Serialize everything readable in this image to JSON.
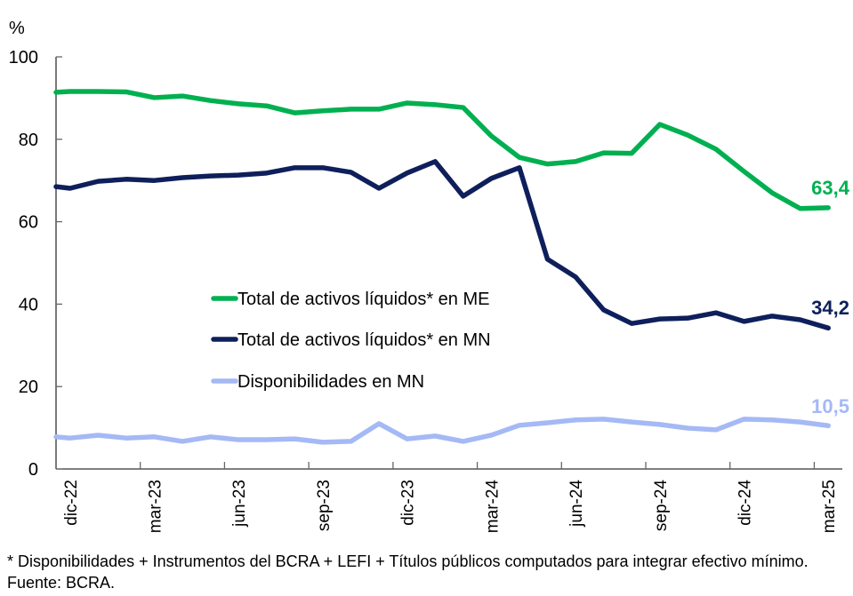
{
  "chart_data": {
    "type": "line",
    "title": "",
    "ylabel": "%",
    "xlabel": "",
    "ylim": [
      0,
      100
    ],
    "yticks": [
      0,
      20,
      40,
      60,
      80,
      100
    ],
    "grid": false,
    "legend_position": "center-left, inside plot",
    "categories": [
      "dic-22",
      "ene-23",
      "feb-23",
      "mar-23",
      "abr-23",
      "may-23",
      "jun-23",
      "jul-23",
      "ago-23",
      "sep-23",
      "oct-23",
      "nov-23",
      "dic-23",
      "ene-24",
      "feb-24",
      "mar-24",
      "abr-24",
      "may-24",
      "jun-24",
      "jul-24",
      "ago-24",
      "sep-24",
      "oct-24",
      "nov-24",
      "dic-24",
      "ene-25",
      "feb-25",
      "mar-25"
    ],
    "xtick_labels": [
      "dic-22",
      "mar-23",
      "jun-23",
      "sep-23",
      "dic-23",
      "mar-24",
      "jun-24",
      "sep-24",
      "dic-24",
      "mar-25"
    ],
    "xtick_label_every": 3,
    "series": [
      {
        "name": "Total de activos líquidos* en ME",
        "color": "#00B050",
        "axis_start_value": 91.4,
        "values": [
          91.6,
          91.6,
          91.5,
          90.1,
          90.5,
          89.4,
          88.6,
          88.1,
          86.4,
          86.9,
          87.3,
          87.3,
          88.8,
          88.4,
          87.7,
          80.8,
          75.6,
          74.0,
          74.6,
          76.7,
          76.6,
          83.6,
          81.0,
          77.6,
          72.2,
          67.0,
          63.2,
          63.4
        ],
        "end_label": "63,4"
      },
      {
        "name": "Total de activos líquidos* en MN",
        "color": "#0E1F5B",
        "axis_start_value": 68.5,
        "values": [
          68.1,
          69.8,
          70.3,
          70.0,
          70.7,
          71.1,
          71.3,
          71.8,
          73.1,
          73.1,
          72.0,
          68.1,
          71.8,
          74.6,
          66.2,
          70.5,
          73.1,
          50.9,
          46.6,
          38.6,
          35.3,
          36.4,
          36.6,
          37.9,
          35.8,
          37.1,
          36.2,
          34.2
        ],
        "end_label": "34,2"
      },
      {
        "name": "Disponibilidades en MN",
        "color": "#A4B9F5",
        "axis_start_value": 7.8,
        "values": [
          7.5,
          8.2,
          7.5,
          7.8,
          6.7,
          7.8,
          7.1,
          7.1,
          7.3,
          6.5,
          6.7,
          11.0,
          7.3,
          8.0,
          6.7,
          8.2,
          10.6,
          11.2,
          11.9,
          12.1,
          11.4,
          10.8,
          9.9,
          9.5,
          12.1,
          11.9,
          11.4,
          10.5
        ],
        "end_label": "10,5"
      }
    ]
  },
  "footnote": "* Disponibilidades + Instrumentos del BCRA + LEFI + Títulos públicos computados para integrar efectivo mínimo. Fuente: BCRA."
}
